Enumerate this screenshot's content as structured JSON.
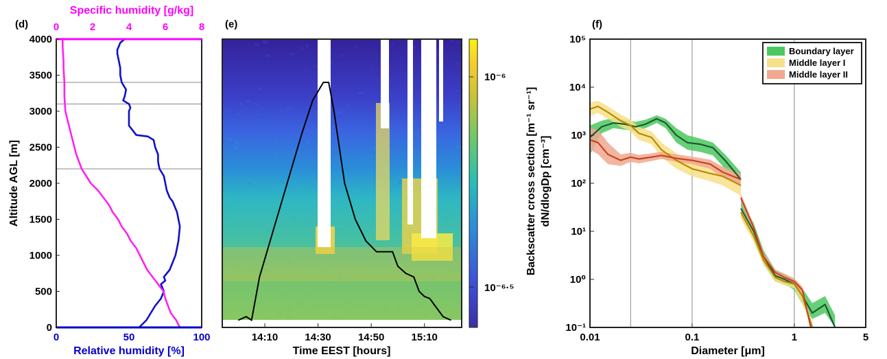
{
  "panel_labels": {
    "d": "(d)",
    "e": "(e)",
    "f": "(f)"
  },
  "chart_data": [
    {
      "type": "line",
      "panel": "d",
      "x_top": {
        "label": "Specific humidity [g/kg]",
        "range": [
          0,
          8
        ],
        "ticks": [
          "0",
          "2",
          "4",
          "6",
          "8"
        ],
        "color": "#ff00ff"
      },
      "x_bottom": {
        "label": "Relative humidity [%]",
        "range": [
          0,
          100
        ],
        "ticks": [
          "0",
          "50",
          "100"
        ],
        "color": "#0000cc"
      },
      "ylabel": "Altitude AGL [m]",
      "ylim": [
        0,
        4000
      ],
      "yticks": [
        "0",
        "500",
        "1000",
        "1500",
        "2000",
        "2500",
        "3000",
        "3500",
        "4000"
      ],
      "reference_lines_y": [
        2200,
        3100,
        3400
      ],
      "series": [
        {
          "axis": "bottom",
          "color": "#1010c8",
          "x": [
            57,
            62,
            65,
            68,
            72,
            74,
            72,
            75,
            74,
            78,
            80,
            82,
            83,
            84,
            85,
            83,
            80,
            78,
            76,
            75,
            74,
            71,
            70,
            70,
            68,
            67,
            63,
            55,
            52,
            50,
            50,
            50,
            51,
            50,
            46,
            47,
            48,
            45,
            44,
            44,
            43,
            42,
            42,
            43,
            44,
            47
          ],
          "y": [
            0,
            100,
            200,
            300,
            400,
            500,
            600,
            650,
            700,
            800,
            900,
            1000,
            1100,
            1200,
            1400,
            1600,
            1750,
            1800,
            1900,
            2000,
            2100,
            2200,
            2300,
            2400,
            2500,
            2600,
            2650,
            2670,
            2750,
            2800,
            2900,
            3000,
            3050,
            3100,
            3150,
            3200,
            3300,
            3400,
            3500,
            3600,
            3700,
            3800,
            3850,
            3900,
            3950,
            4000
          ]
        },
        {
          "axis": "top",
          "color": "#ff22ee",
          "x": [
            6.8,
            6.6,
            6.3,
            6.0,
            5.9,
            5.6,
            5.3,
            5.0,
            4.8,
            4.6,
            4.4,
            4.1,
            3.9,
            3.6,
            3.4,
            3.1,
            2.9,
            2.6,
            2.3,
            1.9,
            1.4,
            1.1,
            0.9,
            0.7,
            0.6,
            0.5,
            0.45,
            0.45,
            0.4,
            0.4,
            0.35,
            0.35
          ],
          "y": [
            0,
            100,
            200,
            400,
            500,
            600,
            700,
            800,
            900,
            1000,
            1100,
            1200,
            1300,
            1400,
            1500,
            1600,
            1700,
            1800,
            1900,
            2000,
            2200,
            2400,
            2600,
            2800,
            2900,
            3000,
            3200,
            3400,
            3600,
            3700,
            3900,
            4000
          ]
        }
      ]
    },
    {
      "type": "heatmap",
      "panel": "e",
      "xlabel": "Time EEST [hours]",
      "xticks": [
        "14:10",
        "14:30",
        "14:50",
        "15:10"
      ],
      "colorbar": {
        "label": "Backscatter cross section [m⁻¹ sr⁻¹]",
        "scale": "log",
        "ticks": [
          "10⁻⁶",
          "10⁻⁶·⁵"
        ]
      },
      "profile_line": {
        "color": "#000000",
        "x_min": [
          0,
          3,
          5,
          8,
          12,
          16,
          20,
          24,
          28,
          32,
          34,
          36,
          38,
          40,
          44,
          48,
          52,
          55,
          58,
          60,
          63,
          66,
          68,
          70,
          72,
          74,
          77,
          80
        ],
        "y": [
          100,
          150,
          100,
          700,
          1200,
          1700,
          2200,
          2700,
          3150,
          3400,
          3400,
          3000,
          2500,
          2000,
          1500,
          1200,
          1050,
          1050,
          1050,
          850,
          750,
          700,
          500,
          430,
          400,
          300,
          150,
          100
        ]
      }
    },
    {
      "type": "line",
      "panel": "f",
      "xlabel": "Diameter [μm]",
      "ylabel": "dN/dlogDp [cm⁻³]",
      "xscale": "log",
      "yscale": "log",
      "xlim": [
        0.01,
        5
      ],
      "ylim": [
        0.1,
        100000
      ],
      "xticks": [
        "0.01",
        "0.1",
        "1",
        "5"
      ],
      "yticks": [
        "10⁻¹",
        "10⁰",
        "10¹",
        "10²",
        "10³",
        "10⁴",
        "10⁵"
      ],
      "vlines": [
        0.025,
        0.1,
        1
      ],
      "legend": "top-right",
      "series": [
        {
          "name": "Boundary layer",
          "line": "#1e5a32",
          "fill": "#4bc85f",
          "x": [
            0.01,
            0.013,
            0.017,
            0.022,
            0.028,
            0.035,
            0.045,
            0.055,
            0.07,
            0.09,
            0.12,
            0.16,
            0.21,
            0.3
          ],
          "y": [
            900,
            1500,
            1800,
            1700,
            1500,
            1700,
            2200,
            1800,
            1000,
            700,
            650,
            550,
            300,
            120
          ],
          "lo": [
            400,
            1100,
            1400,
            1300,
            1200,
            1400,
            1800,
            1400,
            700,
            500,
            450,
            380,
            200,
            80
          ],
          "hi": [
            1600,
            2000,
            2300,
            2100,
            1900,
            2100,
            2600,
            2200,
            1400,
            1000,
            850,
            700,
            400,
            170
          ]
        },
        {
          "name": "Boundary layer",
          "line": "#1e5a32",
          "fill": "#4bc85f",
          "x": [
            0.3,
            0.4,
            0.5,
            0.65,
            0.8,
            1.0,
            1.2,
            1.5,
            2.0,
            2.5
          ],
          "y": [
            30,
            10,
            3,
            1.2,
            1.0,
            0.8,
            0.45,
            0.2,
            0.3,
            0.1
          ],
          "lo": [
            20,
            7,
            2,
            0.9,
            0.8,
            0.6,
            0.3,
            0.15,
            0.2,
            0.1
          ],
          "hi": [
            45,
            15,
            4,
            1.6,
            1.3,
            1.0,
            0.65,
            0.32,
            0.45,
            0.18
          ]
        },
        {
          "name": "Middle layer I",
          "line": "#b88a00",
          "fill": "#f7e08a",
          "x": [
            0.01,
            0.012,
            0.015,
            0.02,
            0.025,
            0.03,
            0.04,
            0.05,
            0.07,
            0.1,
            0.15,
            0.2,
            0.3
          ],
          "y": [
            3500,
            4000,
            3000,
            2000,
            1600,
            1100,
            900,
            500,
            300,
            200,
            160,
            140,
            90
          ],
          "lo": [
            2500,
            2900,
            2200,
            1500,
            1200,
            800,
            650,
            350,
            200,
            140,
            110,
            90,
            55
          ],
          "hi": [
            4800,
            5200,
            4000,
            2700,
            2100,
            1500,
            1200,
            700,
            420,
            280,
            220,
            200,
            140
          ]
        },
        {
          "name": "Middle layer I",
          "line": "#b88a00",
          "fill": "#f7e08a",
          "x": [
            0.3,
            0.4,
            0.5,
            0.65,
            0.8,
            1.0,
            1.2,
            1.5
          ],
          "y": [
            25,
            8,
            2.5,
            1.1,
            0.9,
            0.8,
            0.45,
            0.1
          ],
          "lo": [
            18,
            6,
            2,
            0.9,
            0.75,
            0.65,
            0.3,
            0.1
          ],
          "hi": [
            33,
            11,
            3.2,
            1.4,
            1.1,
            0.95,
            0.6,
            0.12
          ]
        },
        {
          "name": "Middle layer II",
          "line": "#c8441e",
          "fill": "#f0a890",
          "x": [
            0.01,
            0.012,
            0.015,
            0.02,
            0.025,
            0.03,
            0.04,
            0.05,
            0.07,
            0.1,
            0.15,
            0.2,
            0.3
          ],
          "y": [
            800,
            700,
            400,
            300,
            350,
            320,
            350,
            380,
            330,
            300,
            250,
            170,
            120
          ],
          "lo": [
            500,
            400,
            250,
            230,
            280,
            260,
            290,
            320,
            280,
            250,
            200,
            130,
            90
          ],
          "hi": [
            1400,
            1300,
            700,
            400,
            430,
            390,
            420,
            450,
            400,
            360,
            310,
            220,
            160
          ]
        },
        {
          "name": "Middle layer II",
          "line": "#c8441e",
          "fill": "#f0a890",
          "x": [
            0.3,
            0.4,
            0.5,
            0.65,
            0.8,
            1.0,
            1.2,
            1.45
          ],
          "y": [
            50,
            12,
            3,
            1.4,
            1.1,
            0.9,
            0.6,
            0.1
          ],
          "lo": [
            40,
            10,
            2.5,
            1.2,
            0.95,
            0.78,
            0.5,
            0.1
          ],
          "hi": [
            60,
            14,
            3.6,
            1.6,
            1.3,
            1.05,
            0.7,
            0.12
          ]
        }
      ]
    }
  ]
}
